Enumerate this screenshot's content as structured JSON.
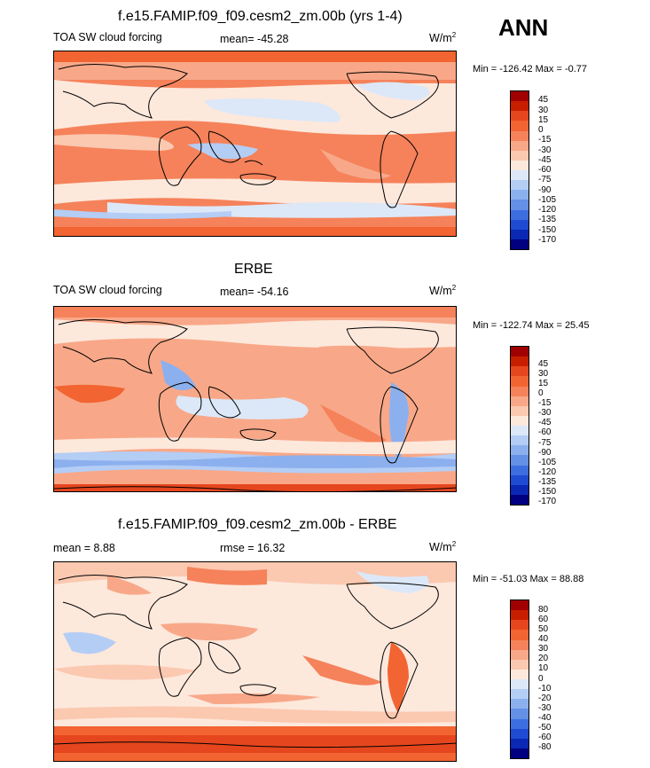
{
  "season": "ANN",
  "colors": {
    "land": "#000000"
  },
  "panels": [
    {
      "title": "f.e15.FAMIP.f09_f09.cesm2_zm.00b (yrs 1-4)",
      "left": "TOA SW cloud forcing",
      "center": "mean= -45.28",
      "right": "W/m",
      "right_sup": "2",
      "minmax": "Min = -126.42 Max =  -0.77"
    },
    {
      "title": "ERBE",
      "left": "TOA SW cloud forcing",
      "center": "mean= -54.16",
      "right": "W/m",
      "right_sup": "2",
      "minmax": "Min = -122.74 Max =  25.45"
    },
    {
      "title": "f.e15.FAMIP.f09_f09.cesm2_zm.00b - ERBE",
      "left": "mean =   8.88",
      "center": "rmse =  16.32",
      "right": "W/m",
      "right_sup": "2",
      "minmax": "Min = -51.03 Max =  88.88"
    }
  ],
  "colorbars": [
    {
      "levels": [
        "45",
        "30",
        "15",
        "0",
        "-15",
        "-30",
        "-45",
        "-60",
        "-75",
        "-90",
        "-105",
        "-120",
        "-135",
        "-150",
        "-170"
      ],
      "colors": [
        "#a00000",
        "#c81e00",
        "#e6461e",
        "#f26432",
        "#f5825a",
        "#f8a888",
        "#fbc8b0",
        "#fde8dc",
        "#dce8f8",
        "#b4cdf5",
        "#8cb0ee",
        "#6490e6",
        "#3c6ee0",
        "#1e4bd2",
        "#0a28b4",
        "#000080"
      ]
    },
    {
      "levels": [
        "45",
        "30",
        "15",
        "0",
        "-15",
        "-30",
        "-45",
        "-60",
        "-75",
        "-90",
        "-105",
        "-120",
        "-135",
        "-150",
        "-170"
      ],
      "colors": [
        "#a00000",
        "#c81e00",
        "#e6461e",
        "#f26432",
        "#f5825a",
        "#f8a888",
        "#fbc8b0",
        "#fde8dc",
        "#dce8f8",
        "#b4cdf5",
        "#8cb0ee",
        "#6490e6",
        "#3c6ee0",
        "#1e4bd2",
        "#0a28b4",
        "#000080"
      ]
    },
    {
      "levels": [
        "80",
        "60",
        "50",
        "40",
        "30",
        "20",
        "10",
        "0",
        "-10",
        "-20",
        "-30",
        "-40",
        "-50",
        "-60",
        "-80"
      ],
      "colors": [
        "#a00000",
        "#c81e00",
        "#e6461e",
        "#f26432",
        "#f5825a",
        "#f8a888",
        "#fbc8b0",
        "#fde8dc",
        "#dce8f8",
        "#b4cdf5",
        "#8cb0ee",
        "#6490e6",
        "#3c6ee0",
        "#1e4bd2",
        "#0a28b4",
        "#000080"
      ]
    }
  ]
}
